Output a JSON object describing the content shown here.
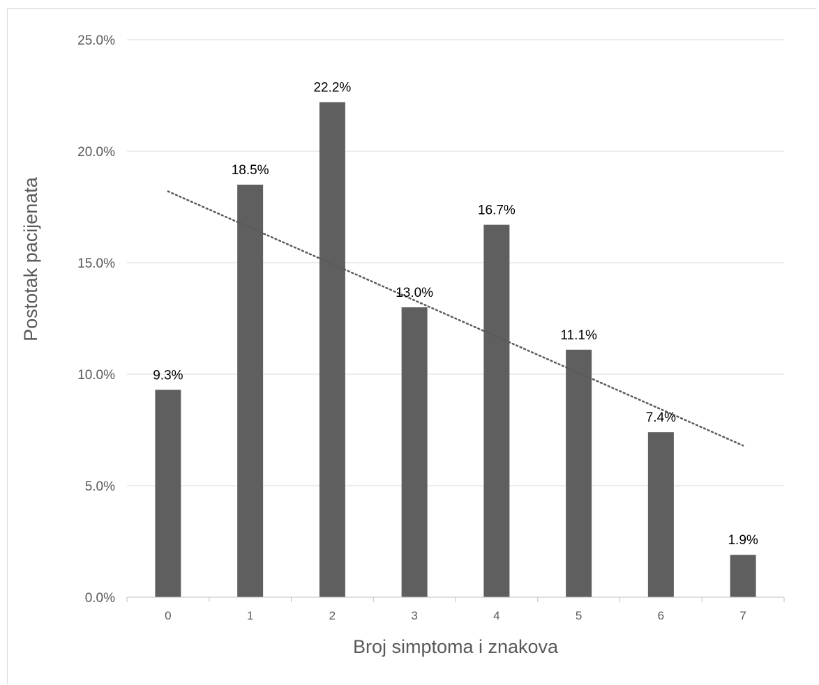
{
  "chart_data": {
    "type": "bar",
    "title": "",
    "xlabel": "Broj simptoma i znakova",
    "ylabel": "Postotak pacijenata",
    "categories": [
      "0",
      "1",
      "2",
      "3",
      "4",
      "5",
      "6",
      "7"
    ],
    "values": [
      9.3,
      18.5,
      22.2,
      13.0,
      16.7,
      11.1,
      7.4,
      1.9
    ],
    "data_labels": [
      "9.3%",
      "18.5%",
      "22.2%",
      "13.0%",
      "16.7%",
      "11.1%",
      "7.4%",
      "1.9%"
    ],
    "ylim": [
      0,
      25
    ],
    "yticks": [
      0,
      5,
      10,
      15,
      20,
      25
    ],
    "ytick_labels": [
      "0.0%",
      "5.0%",
      "10.0%",
      "15.0%",
      "20.0%",
      "25.0%"
    ],
    "grid": true,
    "legend": "none",
    "trendline": {
      "type": "linear",
      "style": "dotted",
      "start": 18.2,
      "end": 6.8
    },
    "colors": {
      "bar": "#5f5f5f",
      "grid": "#d9d9d9",
      "axis": "#bfbfbf",
      "trendline": "#595959",
      "text": "#595959"
    }
  }
}
